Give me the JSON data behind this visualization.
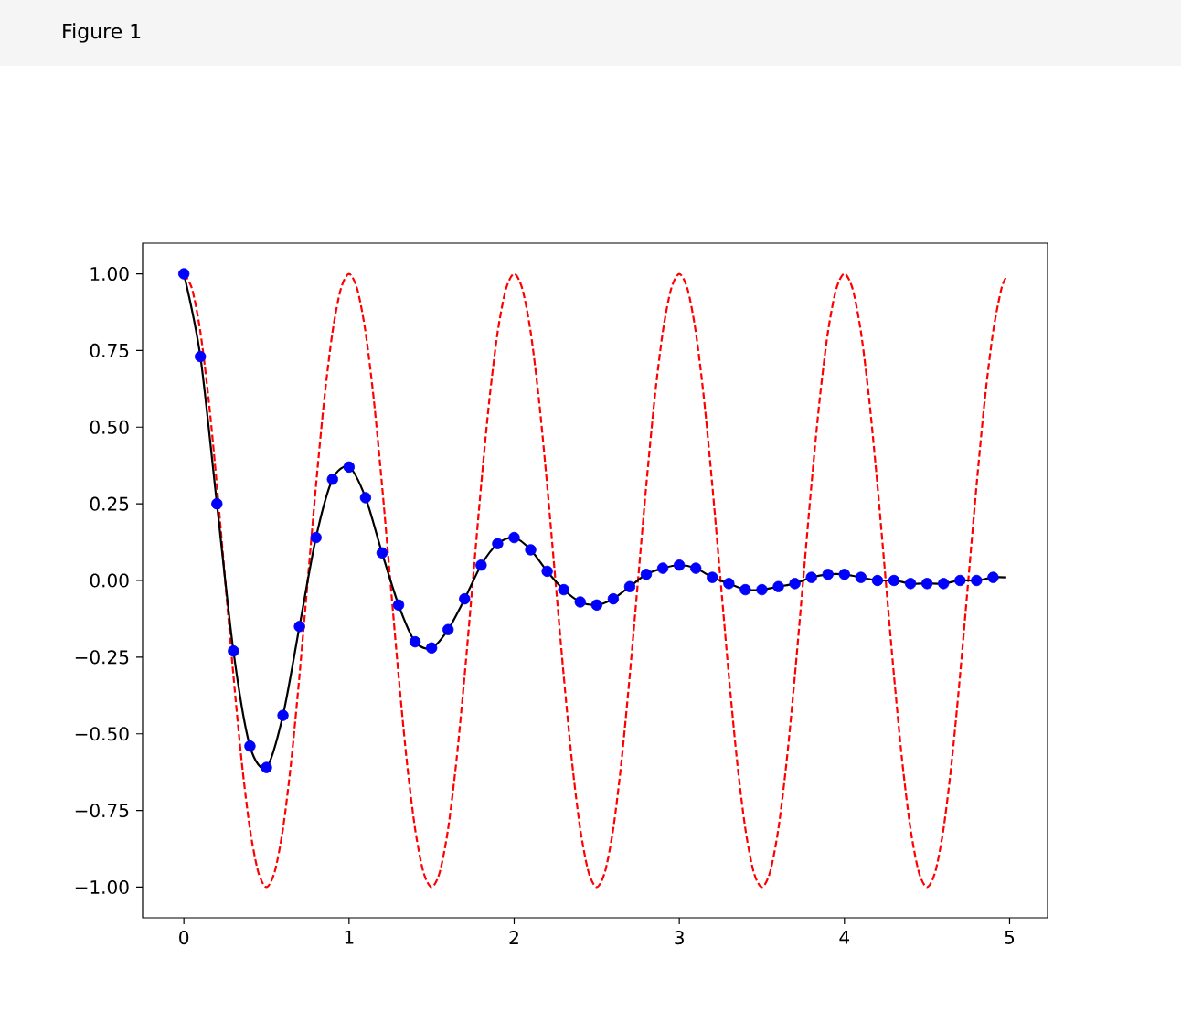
{
  "chart_data": {
    "type": "line",
    "annotations": [
      "Figure 1"
    ],
    "xlim": [
      -0.25,
      5.23
    ],
    "ylim": [
      -1.1,
      1.1
    ],
    "xticks": [
      0,
      1,
      2,
      3,
      4,
      5
    ],
    "yticks": [
      {
        "value": -1,
        "label": "−1.00"
      },
      {
        "value": -0.75,
        "label": "−0.75"
      },
      {
        "value": -0.5,
        "label": "−0.50"
      },
      {
        "value": -0.25,
        "label": "−0.25"
      },
      {
        "value": 0,
        "label": "0.00"
      },
      {
        "value": 0.25,
        "label": "0.25"
      },
      {
        "value": 0.5,
        "label": "0.50"
      },
      {
        "value": 0.75,
        "label": "0.75"
      },
      {
        "value": 1,
        "label": "1.00"
      }
    ],
    "series": [
      {
        "type": "line",
        "color": "#ff0000",
        "line_style": "dashed",
        "x": [
          0,
          0.05,
          0.1,
          0.15,
          0.2,
          0.25,
          0.3,
          0.35,
          0.4,
          0.45,
          0.5,
          0.55,
          0.6,
          0.65,
          0.7,
          0.75,
          0.8,
          0.85,
          0.9,
          0.95,
          1,
          1.05,
          1.1,
          1.15,
          1.2,
          1.25,
          1.3,
          1.35,
          1.4,
          1.45,
          1.5,
          1.55,
          1.6,
          1.65,
          1.7,
          1.75,
          1.8,
          1.85,
          1.9,
          1.95,
          2,
          2.05,
          2.1,
          2.15,
          2.2,
          2.25,
          2.3,
          2.35,
          2.4,
          2.45,
          2.5,
          2.55,
          2.6,
          2.65,
          2.7,
          2.75,
          2.8,
          2.85,
          2.9,
          2.95,
          3,
          3.05,
          3.1,
          3.15,
          3.2,
          3.25,
          3.3,
          3.35,
          3.4,
          3.45,
          3.5,
          3.55,
          3.6,
          3.65,
          3.7,
          3.75,
          3.8,
          3.85,
          3.9,
          3.95,
          4,
          4.05,
          4.1,
          4.15,
          4.2,
          4.25,
          4.3,
          4.35,
          4.4,
          4.45,
          4.5,
          4.55,
          4.6,
          4.65,
          4.7,
          4.75,
          4.8,
          4.85,
          4.9,
          4.95,
          4.98
        ],
        "values": [
          1,
          0.95,
          0.81,
          0.59,
          0.31,
          0,
          -0.31,
          -0.59,
          -0.81,
          -0.95,
          -1,
          -0.95,
          -0.81,
          -0.59,
          -0.31,
          0,
          0.31,
          0.59,
          0.81,
          0.95,
          1,
          0.95,
          0.81,
          0.59,
          0.31,
          0,
          -0.31,
          -0.59,
          -0.81,
          -0.95,
          -1,
          -0.95,
          -0.81,
          -0.59,
          -0.31,
          0,
          0.31,
          0.59,
          0.81,
          0.95,
          1,
          0.95,
          0.81,
          0.59,
          0.31,
          0,
          -0.31,
          -0.59,
          -0.81,
          -0.95,
          -1,
          -0.95,
          -0.81,
          -0.59,
          -0.31,
          0,
          0.31,
          0.59,
          0.81,
          0.95,
          1,
          0.95,
          0.81,
          0.59,
          0.31,
          0,
          -0.31,
          -0.59,
          -0.81,
          -0.95,
          -1,
          -0.95,
          -0.81,
          -0.59,
          -0.31,
          0,
          0.31,
          0.59,
          0.81,
          0.95,
          1,
          0.95,
          0.81,
          0.59,
          0.31,
          0,
          -0.31,
          -0.59,
          -0.81,
          -0.95,
          -1,
          -0.95,
          -0.81,
          -0.59,
          -0.31,
          0,
          0.31,
          0.59,
          0.81,
          0.95,
          0.99
        ]
      },
      {
        "type": "line",
        "color": "#000000",
        "line_style": "solid",
        "x": [
          0,
          0.1,
          0.2,
          0.3,
          0.4,
          0.5,
          0.6,
          0.7,
          0.8,
          0.9,
          1,
          1.1,
          1.2,
          1.3,
          1.4,
          1.5,
          1.6,
          1.7,
          1.8,
          1.9,
          2,
          2.1,
          2.2,
          2.3,
          2.4,
          2.5,
          2.6,
          2.7,
          2.8,
          2.9,
          3,
          3.1,
          3.2,
          3.3,
          3.4,
          3.5,
          3.6,
          3.7,
          3.8,
          3.9,
          4,
          4.1,
          4.2,
          4.3,
          4.4,
          4.5,
          4.6,
          4.7,
          4.8,
          4.9,
          4.98
        ],
        "values": [
          1,
          0.73,
          0.25,
          -0.23,
          -0.54,
          -0.61,
          -0.44,
          -0.15,
          0.14,
          0.33,
          0.37,
          0.27,
          0.09,
          -0.08,
          -0.2,
          -0.22,
          -0.16,
          -0.06,
          0.05,
          0.12,
          0.14,
          0.1,
          0.03,
          -0.03,
          -0.07,
          -0.08,
          -0.06,
          -0.02,
          0.02,
          0.04,
          0.05,
          0.04,
          0.01,
          -0.01,
          -0.03,
          -0.03,
          -0.02,
          -0.01,
          0.01,
          0.02,
          0.02,
          0.01,
          0,
          0,
          -0.01,
          -0.01,
          -0.01,
          0,
          0,
          0.01,
          0.01
        ]
      },
      {
        "type": "scatter",
        "color": "#0000ff",
        "marker": "circle",
        "x": [
          0,
          0.1,
          0.2,
          0.3,
          0.4,
          0.5,
          0.6,
          0.7,
          0.8,
          0.9,
          1,
          1.1,
          1.2,
          1.3,
          1.4,
          1.5,
          1.6,
          1.7,
          1.8,
          1.9,
          2,
          2.1,
          2.2,
          2.3,
          2.4,
          2.5,
          2.6,
          2.7,
          2.8,
          2.9,
          3,
          3.1,
          3.2,
          3.3,
          3.4,
          3.5,
          3.6,
          3.7,
          3.8,
          3.9,
          4,
          4.1,
          4.2,
          4.3,
          4.4,
          4.5,
          4.6,
          4.7,
          4.8,
          4.9
        ],
        "values": [
          1,
          0.73,
          0.25,
          -0.23,
          -0.54,
          -0.61,
          -0.44,
          -0.15,
          0.14,
          0.33,
          0.37,
          0.27,
          0.09,
          -0.08,
          -0.2,
          -0.22,
          -0.16,
          -0.06,
          0.05,
          0.12,
          0.14,
          0.1,
          0.03,
          -0.03,
          -0.07,
          -0.08,
          -0.06,
          -0.02,
          0.02,
          0.04,
          0.05,
          0.04,
          0.01,
          -0.01,
          -0.03,
          -0.03,
          -0.02,
          -0.01,
          0.01,
          0.02,
          0.02,
          0.01,
          0,
          0,
          -0.01,
          -0.01,
          -0.01,
          0,
          0,
          0.01
        ]
      }
    ]
  }
}
